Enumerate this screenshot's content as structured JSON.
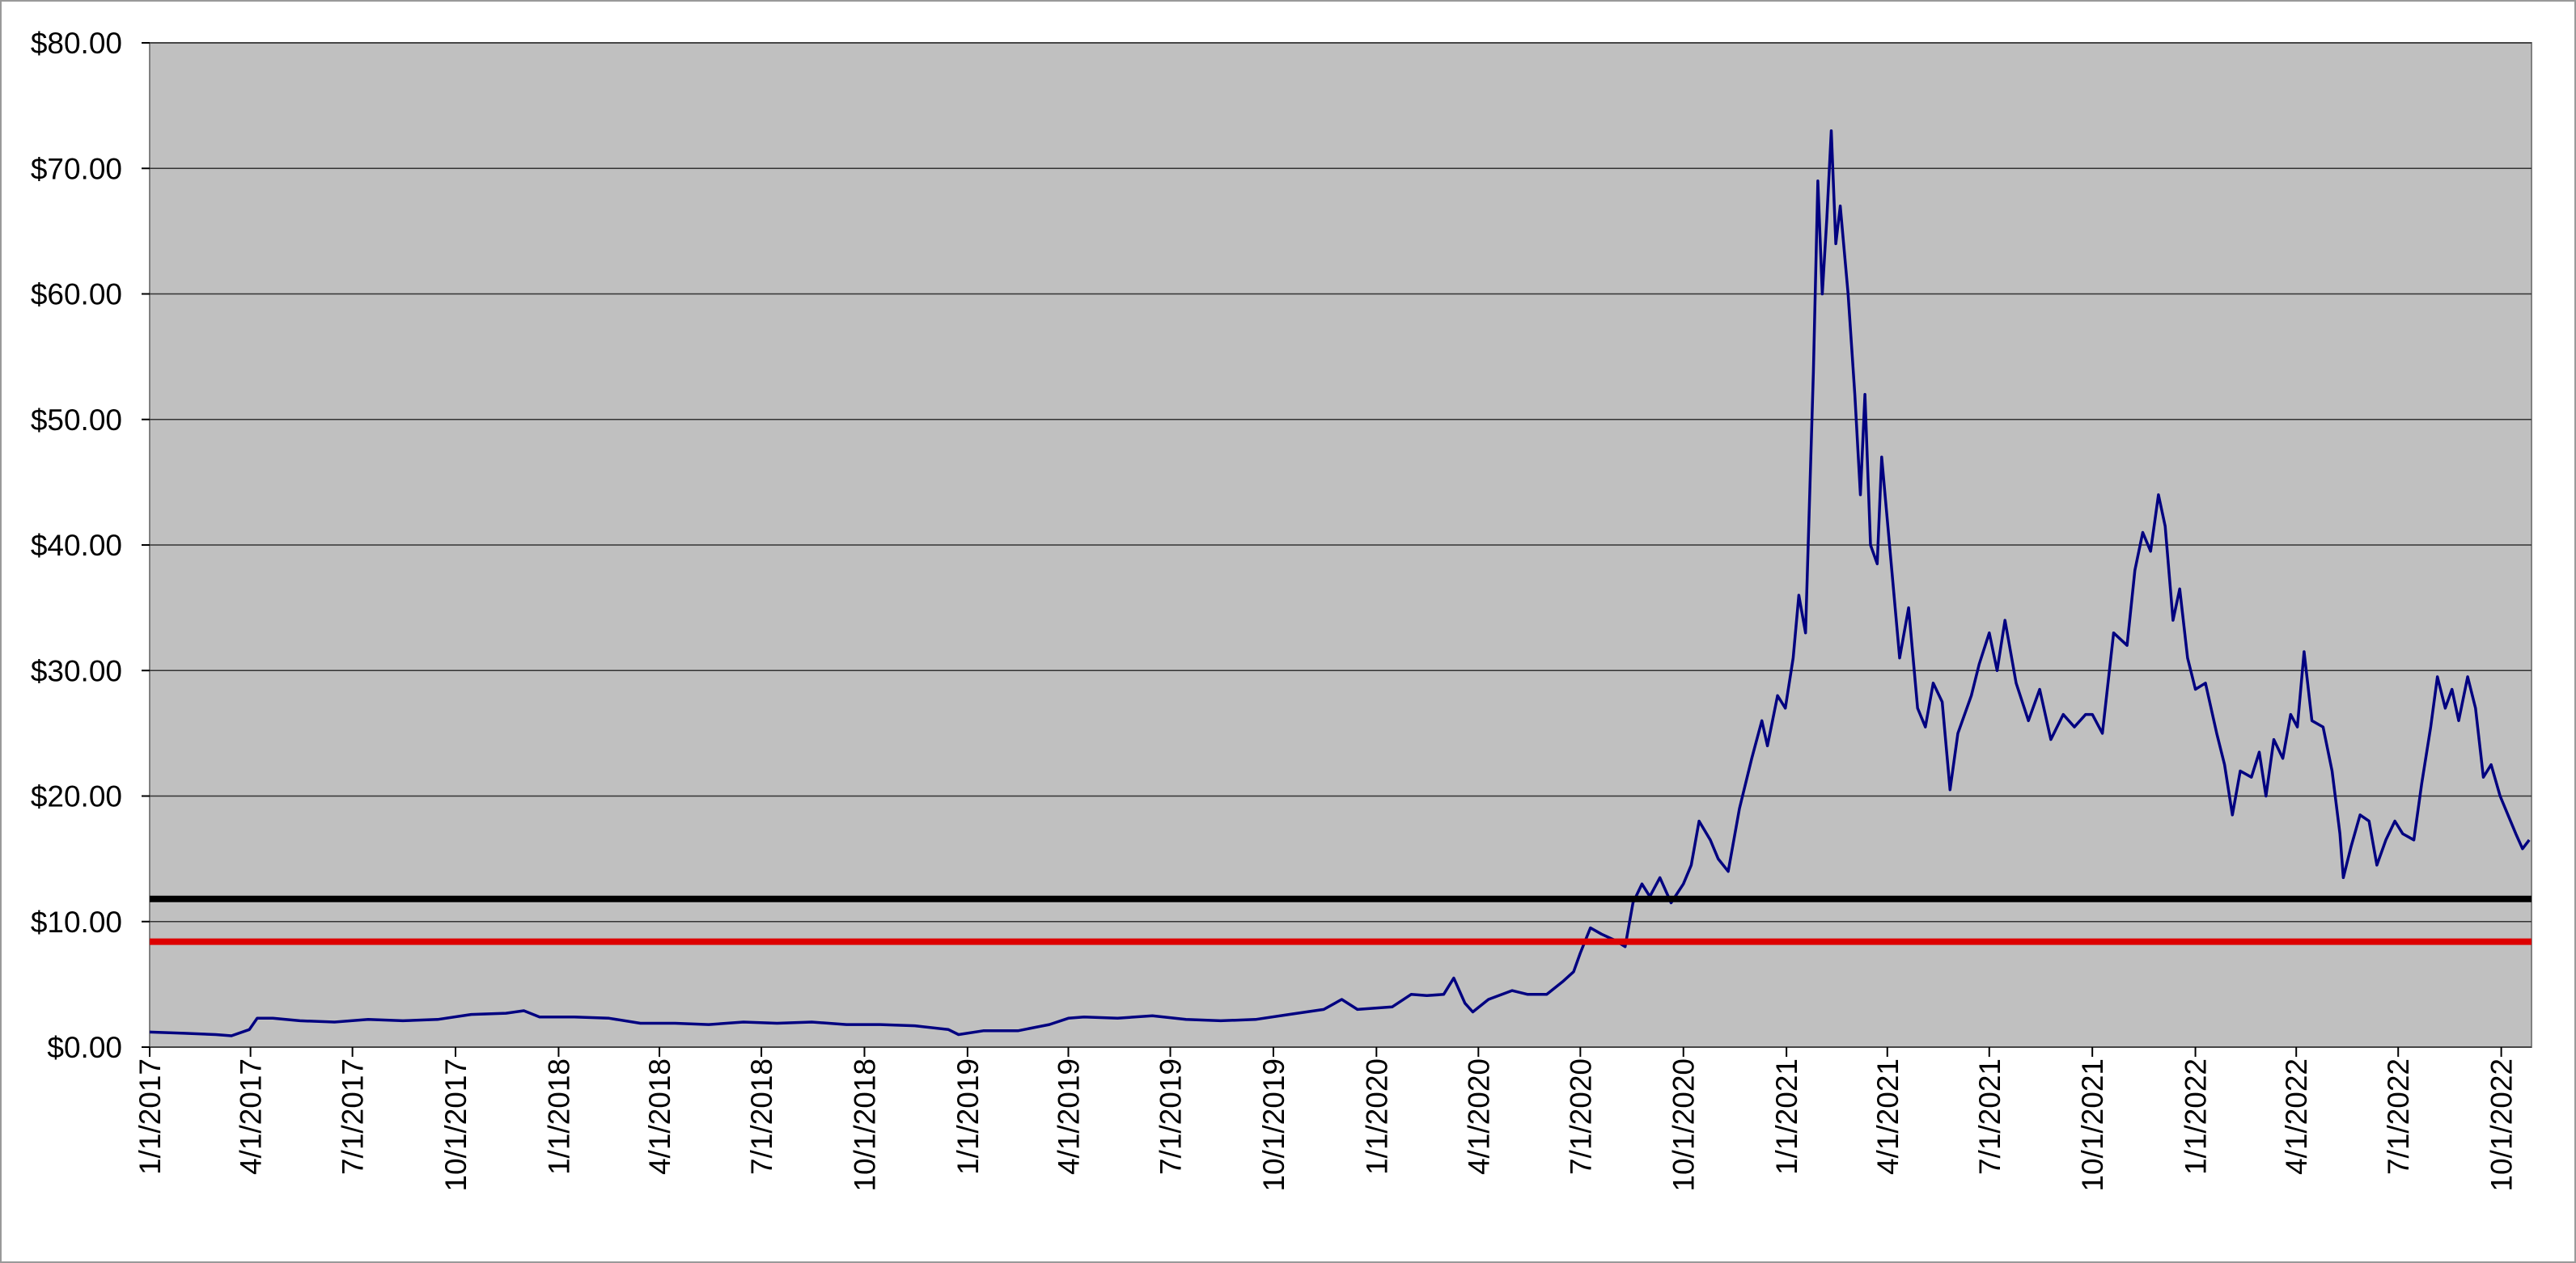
{
  "chart_data": {
    "type": "line",
    "x": [
      "1/1/2017",
      "2/1/2017",
      "3/1/2017",
      "3/15/2017",
      "3/31/2017",
      "4/7/2017",
      "4/21/2017",
      "5/15/2017",
      "6/15/2017",
      "7/15/2017",
      "8/15/2017",
      "9/15/2017",
      "10/15/2017",
      "11/15/2017",
      "12/1/2017",
      "12/15/2017",
      "1/15/2018",
      "2/15/2018",
      "3/15/2018",
      "4/15/2018",
      "5/15/2018",
      "6/15/2018",
      "7/15/2018",
      "8/15/2018",
      "9/15/2018",
      "10/15/2018",
      "11/15/2018",
      "12/15/2018",
      "12/24/2018",
      "1/15/2019",
      "2/15/2019",
      "3/15/2019",
      "4/1/2019",
      "4/15/2019",
      "5/15/2019",
      "6/15/2019",
      "7/15/2019",
      "8/15/2019",
      "9/15/2019",
      "10/15/2019",
      "11/15/2019",
      "12/1/2019",
      "12/15/2019",
      "1/15/2020",
      "2/1/2020",
      "2/15/2020",
      "3/1/2020",
      "3/10/2020",
      "3/20/2020",
      "3/27/2020",
      "4/10/2020",
      "5/1/2020",
      "5/15/2020",
      "6/1/2020",
      "6/15/2020",
      "6/25/2020",
      "7/1/2020",
      "7/10/2020",
      "7/20/2020",
      "8/1/2020",
      "8/10/2020",
      "8/17/2020",
      "8/25/2020",
      "9/1/2020",
      "9/10/2020",
      "9/20/2020",
      "10/1/2020",
      "10/8/2020",
      "10/15/2020",
      "10/25/2020",
      "11/1/2020",
      "11/10/2020",
      "11/20/2020",
      "12/1/2020",
      "12/10/2020",
      "12/15/2020",
      "12/24/2020",
      "12/31/2020",
      "1/7/2021",
      "1/12/2021",
      "1/18/2021",
      "1/25/2021",
      "1/29/2021",
      "2/2/2021",
      "2/6/2021",
      "2/10/2021",
      "2/14/2021",
      "2/18/2021",
      "2/25/2021",
      "3/3/2021",
      "3/8/2021",
      "3/12/2021",
      "3/17/2021",
      "3/23/2021",
      "3/27/2021",
      "4/5/2021",
      "4/12/2021",
      "4/20/2021",
      "4/28/2021",
      "5/5/2021",
      "5/12/2021",
      "5/20/2021",
      "5/27/2021",
      "6/3/2021",
      "6/15/2021",
      "6/22/2021",
      "7/1/2021",
      "7/8/2021",
      "7/15/2021",
      "7/25/2021",
      "8/5/2021",
      "8/15/2021",
      "8/25/2021",
      "9/5/2021",
      "9/15/2021",
      "9/25/2021",
      "10/1/2021",
      "10/10/2021",
      "10/20/2021",
      "11/1/2021",
      "11/8/2021",
      "11/15/2021",
      "11/22/2021",
      "11/29/2021",
      "12/5/2021",
      "12/12/2021",
      "12/18/2021",
      "12/25/2021",
      "1/1/2022",
      "1/10/2022",
      "1/20/2022",
      "1/27/2022",
      "2/3/2022",
      "2/10/2022",
      "2/20/2022",
      "2/27/2022",
      "3/5/2022",
      "3/12/2022",
      "3/20/2022",
      "3/27/2022",
      "4/2/2022",
      "4/8/2022",
      "4/15/2022",
      "4/25/2022",
      "5/3/2022",
      "5/10/2022",
      "5/13/2022",
      "5/20/2022",
      "5/28/2022",
      "6/5/2022",
      "6/12/2022",
      "6/20/2022",
      "6/28/2022",
      "7/5/2022",
      "7/15/2022",
      "7/22/2022",
      "7/30/2022",
      "8/5/2022",
      "8/12/2022",
      "8/18/2022",
      "8/24/2022",
      "9/1/2022",
      "9/8/2022",
      "9/15/2022",
      "9/22/2022",
      "9/30/2022",
      "10/7/2022",
      "10/14/2022",
      "10/20/2022",
      "10/26/2022"
    ],
    "values": [
      1.2,
      1.1,
      1.0,
      0.9,
      1.4,
      2.3,
      2.3,
      2.1,
      2.0,
      2.2,
      2.1,
      2.2,
      2.6,
      2.7,
      2.9,
      2.4,
      2.4,
      2.3,
      1.9,
      1.9,
      1.8,
      2.0,
      1.9,
      2.0,
      1.8,
      1.8,
      1.7,
      1.4,
      1.0,
      1.3,
      1.3,
      1.8,
      2.3,
      2.4,
      2.3,
      2.5,
      2.2,
      2.1,
      2.2,
      2.6,
      3.0,
      3.8,
      3.0,
      3.2,
      4.2,
      4.1,
      4.2,
      5.5,
      3.5,
      2.8,
      3.8,
      4.5,
      4.2,
      4.2,
      5.2,
      6.0,
      7.5,
      9.5,
      9.0,
      8.5,
      8.0,
      11.5,
      13.0,
      12.0,
      13.5,
      11.5,
      13.0,
      14.5,
      18.0,
      16.5,
      15.0,
      14.0,
      19.0,
      23.0,
      26.0,
      24.0,
      28.0,
      27.0,
      31.0,
      36.0,
      33.0,
      53.8,
      69.0,
      60.0,
      66.0,
      73.0,
      64.0,
      67.0,
      60.0,
      52.0,
      44.0,
      52.0,
      40.0,
      38.5,
      47.0,
      38.0,
      31.0,
      35.0,
      27.0,
      25.5,
      29.0,
      27.5,
      20.5,
      25.0,
      28.0,
      30.5,
      33.0,
      30.0,
      34.0,
      29.0,
      26.0,
      28.5,
      24.5,
      26.5,
      25.5,
      26.5,
      26.5,
      25.0,
      33.0,
      32.0,
      38.0,
      41.0,
      39.5,
      44.0,
      41.5,
      34.0,
      36.5,
      31.0,
      28.5,
      29.0,
      25.0,
      22.5,
      18.5,
      22.0,
      21.5,
      23.5,
      20.0,
      24.5,
      23.0,
      26.5,
      25.5,
      31.5,
      26.0,
      25.5,
      22.0,
      17.0,
      13.5,
      16.0,
      18.5,
      18.0,
      14.5,
      16.5,
      18.0,
      17.0,
      16.5,
      21.0,
      25.5,
      29.5,
      27.0,
      28.5,
      26.0,
      29.5,
      27.0,
      21.5,
      22.5,
      20.0,
      18.5,
      17.0,
      15.8,
      16.5
    ],
    "color": "#000080",
    "reference_lines": [
      {
        "value": 11.8,
        "color": "#000000"
      },
      {
        "value": 8.4,
        "color": "#dd0000"
      }
    ],
    "xlim": [
      "1/1/2017",
      "10/28/2022"
    ],
    "xticks": [
      "1/1/2017",
      "4/1/2017",
      "7/1/2017",
      "10/1/2017",
      "1/1/2018",
      "4/1/2018",
      "7/1/2018",
      "10/1/2018",
      "1/1/2019",
      "4/1/2019",
      "7/1/2019",
      "10/1/2019",
      "1/1/2020",
      "4/1/2020",
      "7/1/2020",
      "10/1/2020",
      "1/1/2021",
      "4/1/2021",
      "7/1/2021",
      "10/1/2021",
      "1/1/2022",
      "4/1/2022",
      "7/1/2022",
      "10/1/2022"
    ],
    "ylim": [
      0,
      80
    ],
    "yticks": [
      {
        "value": 0,
        "label": "$0.00"
      },
      {
        "value": 10,
        "label": "$10.00"
      },
      {
        "value": 20,
        "label": "$20.00"
      },
      {
        "value": 30,
        "label": "$30.00"
      },
      {
        "value": 40,
        "label": "$40.00"
      },
      {
        "value": 50,
        "label": "$50.00"
      },
      {
        "value": 60,
        "label": "$60.00"
      },
      {
        "value": 70,
        "label": "$70.00"
      },
      {
        "value": 80,
        "label": "$80.00"
      }
    ],
    "grid": true
  }
}
